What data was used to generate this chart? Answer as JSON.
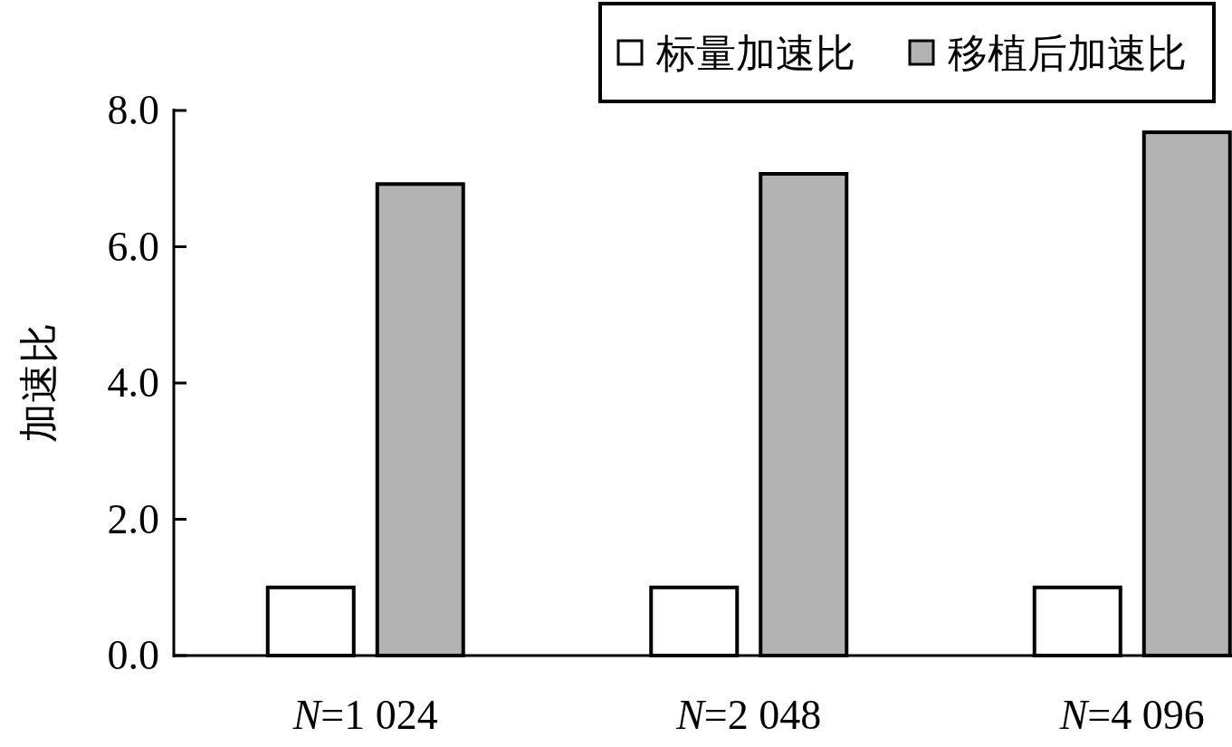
{
  "chart_data": {
    "type": "bar",
    "ylabel": "加速比",
    "categories": [
      "N=1 024",
      "N=2 048",
      "N=4 096"
    ],
    "series": [
      {
        "name": "标量加速比",
        "color": "#ffffff",
        "values": [
          1.0,
          1.0,
          1.0
        ]
      },
      {
        "name": "移植后加速比",
        "color": "#b3b3b3",
        "values": [
          6.92,
          7.07,
          7.68
        ]
      }
    ],
    "ylim": [
      0,
      8
    ],
    "yticks": [
      {
        "value": 0,
        "label": "0.0"
      },
      {
        "value": 2,
        "label": "2.0"
      },
      {
        "value": 4,
        "label": "4.0"
      },
      {
        "value": 6,
        "label": "6.0"
      },
      {
        "value": 8,
        "label": "8.0"
      }
    ],
    "legend": "top right",
    "grid": false
  }
}
